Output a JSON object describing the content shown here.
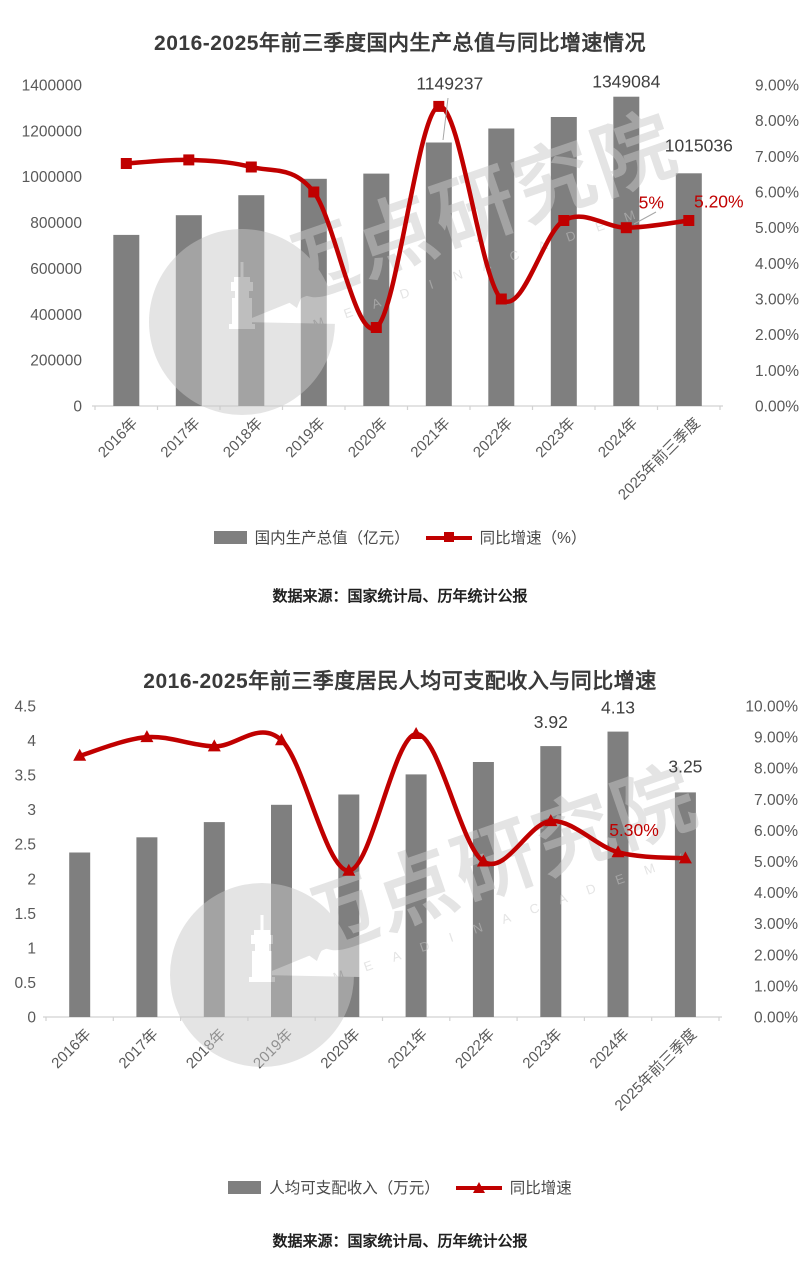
{
  "page": {
    "background": "#ffffff"
  },
  "watermark": {
    "brand": "迈点研究院",
    "latin": "M E A D I N  A C A D E M Y"
  },
  "chart_data": [
    {
      "type": "bar+line",
      "title": "2016-2025年前三季度国内生产总值与同比增速情况",
      "source": "数据来源：国家统计局、历年统计公报",
      "legend": [
        {
          "label": "国内生产总值（亿元）"
        },
        {
          "label": "同比增速（%）"
        }
      ],
      "colors": {
        "bar": "#7f7f7f",
        "line": "#c00000",
        "axis_text": "#595959",
        "axis_line": "#d2d2d2",
        "data_label": "#404040",
        "line_label": "#c00000",
        "leader": "#a6a6a6"
      },
      "categories": [
        "2016年",
        "2017年",
        "2018年",
        "2019年",
        "2020年",
        "2021年",
        "2022年",
        "2023年",
        "2024年",
        "2025年前三季度"
      ],
      "series": [
        {
          "name": "国内生产总值（亿元）",
          "type": "bar",
          "axis": "left",
          "values": [
            746395,
            832036,
            919281,
            990865,
            1013567,
            1149237,
            1210207,
            1260582,
            1349084,
            1015036
          ]
        },
        {
          "name": "同比增速（%）",
          "type": "line",
          "axis": "right",
          "values": [
            6.8,
            6.9,
            6.7,
            6.0,
            2.2,
            8.4,
            3.0,
            5.2,
            5.0,
            5.2
          ]
        }
      ],
      "left_axis": {
        "min": 0,
        "max": 1400000,
        "ticks": [
          "0",
          "200000",
          "400000",
          "600000",
          "800000",
          "1000000",
          "1200000",
          "1400000"
        ]
      },
      "right_axis": {
        "min": 0,
        "max": 9,
        "ticks": [
          "0.00%",
          "1.00%",
          "2.00%",
          "3.00%",
          "4.00%",
          "5.00%",
          "6.00%",
          "7.00%",
          "8.00%",
          "9.00%"
        ]
      },
      "bar_labels": [
        {
          "i": 5,
          "text": "1149237"
        },
        {
          "i": 8,
          "text": "1349084"
        },
        {
          "i": 9,
          "text": "1015036"
        }
      ],
      "line_labels": [
        {
          "i": 8,
          "text": "5%"
        },
        {
          "i": 9,
          "text": "5.20%"
        }
      ]
    },
    {
      "type": "bar+line",
      "title": "2016-2025年前三季度居民人均可支配收入与同比增速",
      "source": "数据来源：国家统计局、历年统计公报",
      "legend": [
        {
          "label": "人均可支配收入（万元）"
        },
        {
          "label": "同比增速"
        }
      ],
      "colors": {
        "bar": "#7f7f7f",
        "line": "#c00000",
        "axis_text": "#595959",
        "axis_line": "#d2d2d2",
        "data_label": "#404040",
        "line_label": "#c00000",
        "leader": "#a6a6a6"
      },
      "categories": [
        "2016年",
        "2017年",
        "2018年",
        "2019年",
        "2020年",
        "2021年",
        "2022年",
        "2023年",
        "2024年",
        "2025年前三季度"
      ],
      "series": [
        {
          "name": "人均可支配收入（万元）",
          "type": "bar",
          "axis": "left",
          "values": [
            2.38,
            2.6,
            2.82,
            3.07,
            3.22,
            3.51,
            3.69,
            3.92,
            4.13,
            3.25
          ]
        },
        {
          "name": "同比增速",
          "type": "line",
          "axis": "right",
          "values": [
            8.4,
            9.0,
            8.7,
            8.9,
            4.7,
            9.1,
            5.0,
            6.3,
            5.3,
            5.1
          ]
        }
      ],
      "left_axis": {
        "min": 0,
        "max": 4.5,
        "ticks": [
          "0",
          "0.5",
          "1",
          "1.5",
          "2",
          "2.5",
          "3",
          "3.5",
          "4",
          "4.5"
        ]
      },
      "right_axis": {
        "min": 0,
        "max": 10,
        "ticks": [
          "0.00%",
          "1.00%",
          "2.00%",
          "3.00%",
          "4.00%",
          "5.00%",
          "6.00%",
          "7.00%",
          "8.00%",
          "9.00%",
          "10.00%"
        ]
      },
      "bar_labels": [
        {
          "i": 7,
          "text": "3.92"
        },
        {
          "i": 8,
          "text": "4.13"
        },
        {
          "i": 9,
          "text": "3.25"
        }
      ],
      "line_labels": [
        {
          "i": 8,
          "text": "5.30%"
        }
      ]
    }
  ]
}
